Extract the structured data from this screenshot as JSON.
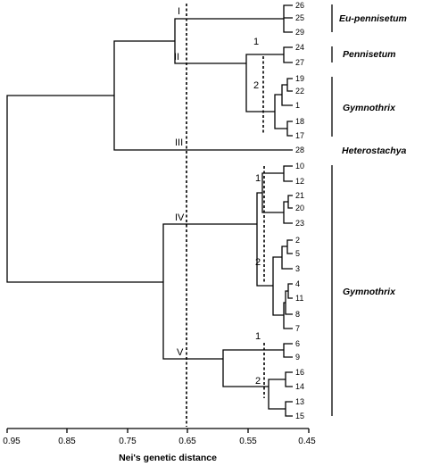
{
  "axis": {
    "title": "Nei's genetic distance",
    "ticks": [
      "0.95",
      "0.85",
      "0.75",
      "0.65",
      "0.55",
      "0.45"
    ]
  },
  "leaves": [
    "26",
    "25",
    "29",
    "24",
    "27",
    "19",
    "22",
    "1",
    "18",
    "17",
    "28",
    "10",
    "12",
    "21",
    "20",
    "23",
    "2",
    "5",
    "3",
    "4",
    "11",
    "8",
    "7",
    "6",
    "9",
    "16",
    "14",
    "13",
    "15"
  ],
  "clusters": {
    "I": "I",
    "II": "II",
    "III": "III",
    "IV": "IV",
    "V": "V",
    "sub_II_1": "1",
    "sub_II_2": "2",
    "sub_IV_1": "1",
    "sub_IV_2": "2",
    "sub_V_1": "1",
    "sub_V_2": "2"
  },
  "groups": {
    "eu_pennisetum": "Eu-pennisetum",
    "pennisetum": "Pennisetum",
    "gymnothrix_1": "Gymnothrix",
    "heterostachya": "Heterostachya",
    "gymnothrix_2": "Gymnothrix"
  }
}
